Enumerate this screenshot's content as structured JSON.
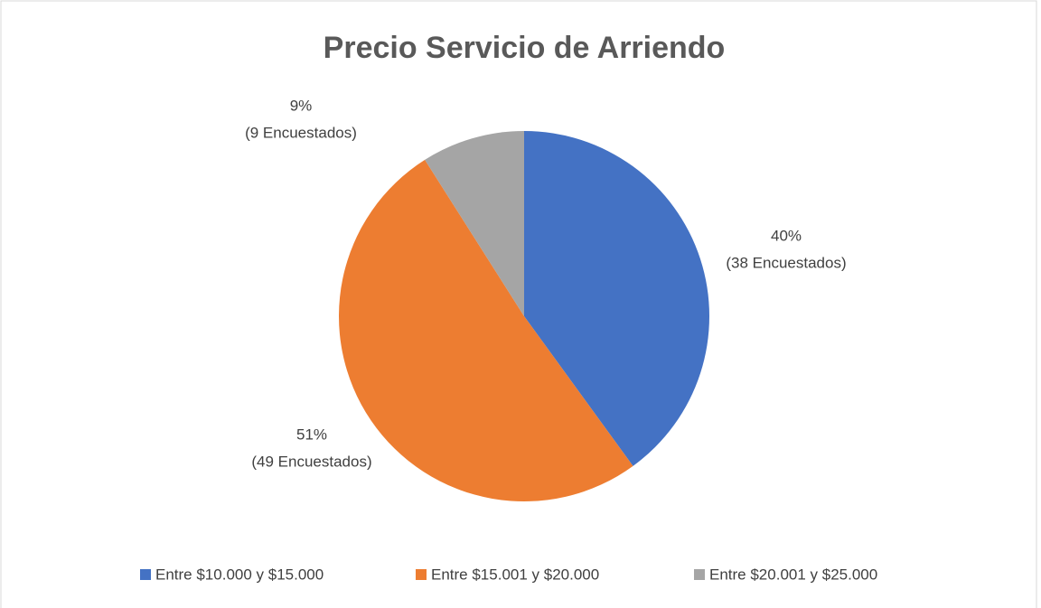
{
  "chart_data": {
    "type": "pie",
    "title": "Precio Servicio de Arriendo",
    "categories": [
      "Entre $10.000 y $15.000",
      "Entre $15.001 y $20.000",
      "Entre $20.001 y $25.000"
    ],
    "values": [
      40,
      51,
      9
    ],
    "value_labels": [
      "40%",
      "51%",
      "9%"
    ],
    "count_labels": [
      "(38 Encuestados)",
      "(49 Encuestados)",
      "(9 Encuestados)"
    ],
    "colors": [
      "#4472c4",
      "#ed7d31",
      "#a5a5a5"
    ],
    "legend": "bottom"
  }
}
